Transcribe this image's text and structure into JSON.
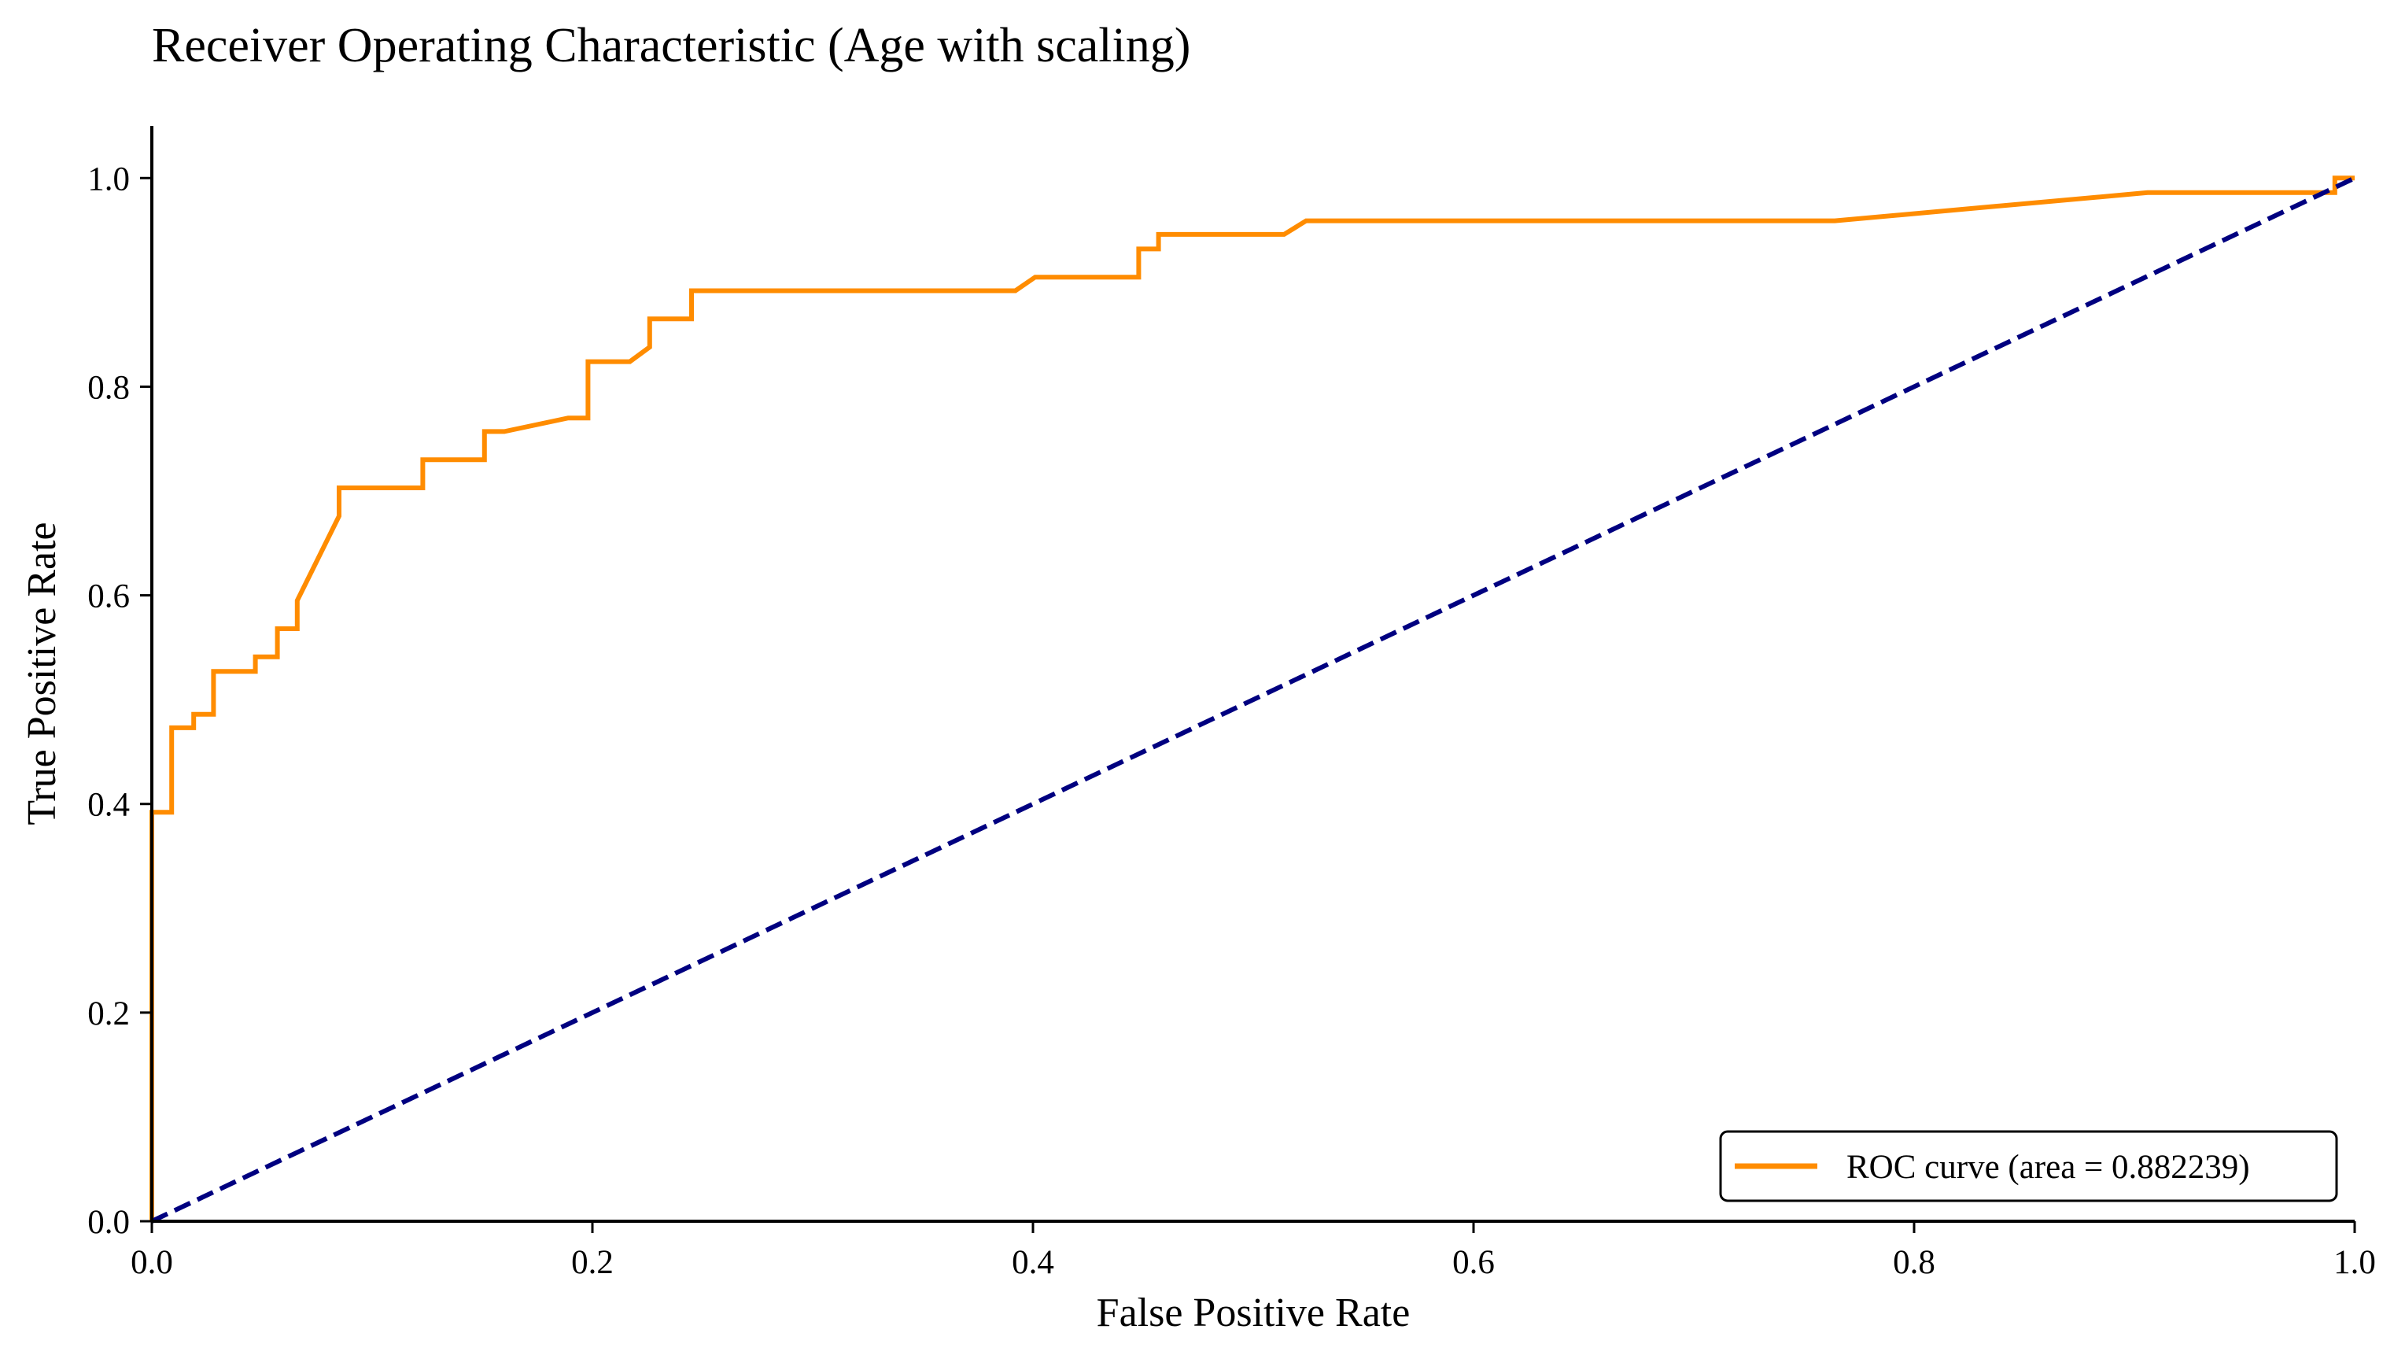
{
  "chart_data": {
    "type": "line",
    "title": "Receiver Operating Characteristic (Age with scaling)",
    "xlabel": "False Positive Rate",
    "ylabel": "True Positive Rate",
    "xlim": [
      0.0,
      1.0
    ],
    "ylim": [
      0.0,
      1.05
    ],
    "x_ticks": [
      "0.0",
      "0.2",
      "0.4",
      "0.6",
      "0.8",
      "1.0"
    ],
    "y_ticks": [
      "0.0",
      "0.2",
      "0.4",
      "0.6",
      "0.8",
      "1.0"
    ],
    "grid": false,
    "legend_position": "lower right",
    "series": [
      {
        "name": "ROC curve (area = 0.882239)",
        "color": "#ff8c00",
        "style": "solid",
        "x": [
          0.0,
          0.0,
          0.009,
          0.009,
          0.019,
          0.019,
          0.028,
          0.028,
          0.047,
          0.047,
          0.057,
          0.057,
          0.066,
          0.066,
          0.085,
          0.085,
          0.123,
          0.123,
          0.151,
          0.151,
          0.16,
          0.189,
          0.198,
          0.198,
          0.217,
          0.226,
          0.226,
          0.245,
          0.245,
          0.392,
          0.401,
          0.448,
          0.448,
          0.457,
          0.457,
          0.514,
          0.524,
          0.764,
          0.906,
          0.991,
          0.991,
          1.0
        ],
        "y": [
          0.0,
          0.392,
          0.392,
          0.473,
          0.473,
          0.486,
          0.486,
          0.527,
          0.527,
          0.541,
          0.541,
          0.568,
          0.568,
          0.595,
          0.676,
          0.703,
          0.703,
          0.73,
          0.73,
          0.757,
          0.757,
          0.77,
          0.77,
          0.824,
          0.824,
          0.838,
          0.865,
          0.865,
          0.892,
          0.892,
          0.905,
          0.905,
          0.932,
          0.932,
          0.946,
          0.946,
          0.959,
          0.959,
          0.986,
          0.986,
          1.0,
          1.0
        ]
      },
      {
        "color": "#000080",
        "style": "dashed",
        "x": [
          0.0,
          1.0
        ],
        "y": [
          0.0,
          1.0
        ]
      }
    ]
  }
}
